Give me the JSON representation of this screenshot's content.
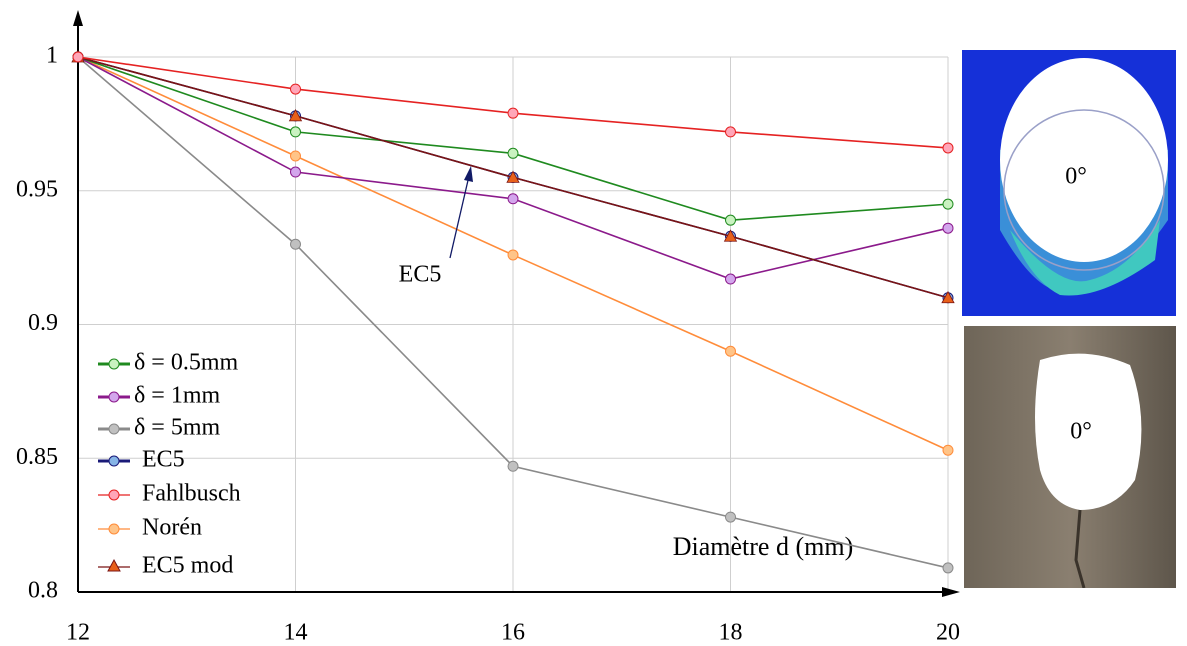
{
  "chart_data": {
    "type": "line",
    "x": [
      12,
      14,
      16,
      18,
      20
    ],
    "xlim": [
      12,
      20
    ],
    "xticks": [
      12,
      14,
      16,
      18,
      20
    ],
    "ylim": [
      0.8,
      1
    ],
    "yticks": [
      0.8,
      0.85,
      0.9,
      0.95,
      1
    ],
    "grid": true,
    "x_label": "Diamètre d (mm)",
    "annotation": "EC5",
    "legend": "left",
    "series": [
      {
        "name": "δ = 0.5mm",
        "color": "#1f8a1f",
        "marker": "circle",
        "marker_color": "#c9f2c0",
        "values": [
          1,
          0.972,
          0.964,
          0.939,
          0.945
        ]
      },
      {
        "name": "δ = 1mm",
        "color": "#8b1a8b",
        "marker": "circle",
        "marker_color": "#d3a6ec",
        "values": [
          1,
          0.957,
          0.947,
          0.917,
          0.936
        ]
      },
      {
        "name": "δ = 5mm",
        "color": "#8a8a8a",
        "marker": "circle",
        "marker_color": "#c0c0c0",
        "values": [
          1,
          0.93,
          0.847,
          0.828,
          0.809
        ]
      },
      {
        "name": "EC5",
        "color": "#1a1a78",
        "marker": "circle",
        "marker_color": "#86b4e6",
        "values": [
          1,
          0.978,
          0.955,
          0.933,
          0.91
        ]
      },
      {
        "name": "Fahlbusch",
        "color": "#e52222",
        "marker": "circle",
        "marker_color": "#ffa6b8",
        "values": [
          1,
          0.988,
          0.979,
          0.972,
          0.966
        ]
      },
      {
        "name": "Norén",
        "color": "#ff8c3a",
        "marker": "circle",
        "marker_color": "#ffc488",
        "values": [
          1,
          0.963,
          0.926,
          0.89,
          0.853
        ]
      },
      {
        "name": "EC5 mod",
        "color": "#7a1414",
        "marker": "triangle",
        "marker_color": "#e8601a",
        "values": [
          1,
          0.978,
          0.955,
          0.933,
          0.91
        ]
      }
    ]
  },
  "insets": [
    {
      "label": "0°"
    },
    {
      "label": "0°"
    }
  ]
}
